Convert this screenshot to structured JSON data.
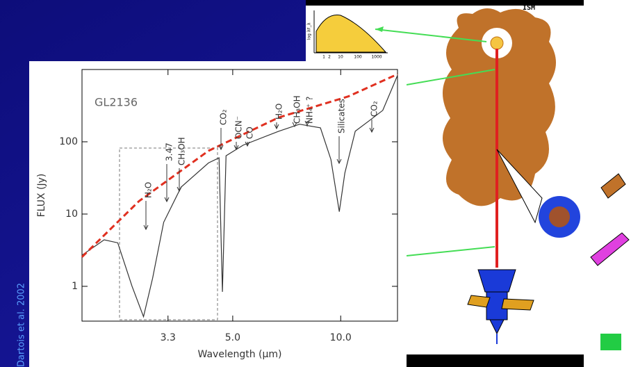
{
  "chart_data": {
    "type": "line",
    "title": "GL2136",
    "xlabel": "Wavelength (μm)",
    "ylabel": "FLUX (Jy)",
    "xscale": "log",
    "yscale": "log",
    "xlim": [
      1.9,
      14.4
    ],
    "ylim": [
      0.33,
      1000
    ],
    "xticks": [
      3.3,
      {
        "value": 5,
        "label": "5.0"
      },
      {
        "value": 10,
        "label": "10.0"
      }
    ],
    "yticks": [
      1,
      10,
      100
    ],
    "grid": false,
    "series": [
      {
        "color": "#333333",
        "style": "solid",
        "x": [
          1.9,
          2.1,
          2.19,
          2.39,
          2.62,
          2.82,
          2.99,
          3.21,
          3.59,
          4.28,
          4.58,
          4.68,
          4.79,
          5.35,
          6.72,
          7.68,
          8.78,
          9.39,
          9.91,
          10.27,
          10.98,
          12.0,
          13.1,
          14.4
        ],
        "values": [
          2.7,
          3.8,
          4.4,
          4.0,
          1.0,
          0.38,
          1.3,
          7.7,
          23.6,
          51,
          60,
          0.84,
          64,
          90,
          140,
          175,
          156,
          57,
          10.8,
          37,
          140,
          195,
          272,
          828
        ]
      },
      {
        "color": "#e03020",
        "style": "dashed",
        "x": [
          1.9,
          2.74,
          4.28,
          6.72,
          10.5,
          14.4
        ],
        "values": [
          2.55,
          15.1,
          75,
          217,
          424,
          862
        ]
      }
    ],
    "annotations": [
      "H₂O",
      "3.47",
      "CH₃OH",
      "CO₂",
      "OCN⁻",
      "CO",
      "H₂O",
      "CH₃OH",
      "NH₄⁺ ?",
      "Silicates",
      "CO₂"
    ]
  },
  "credit": "Dartois et al. 2002",
  "diagram": {
    "label": "ISM"
  },
  "inset": {
    "ylabel": "log λF_λ",
    "xticks": [
      "1",
      "2",
      "10",
      "100",
      "1000"
    ]
  }
}
